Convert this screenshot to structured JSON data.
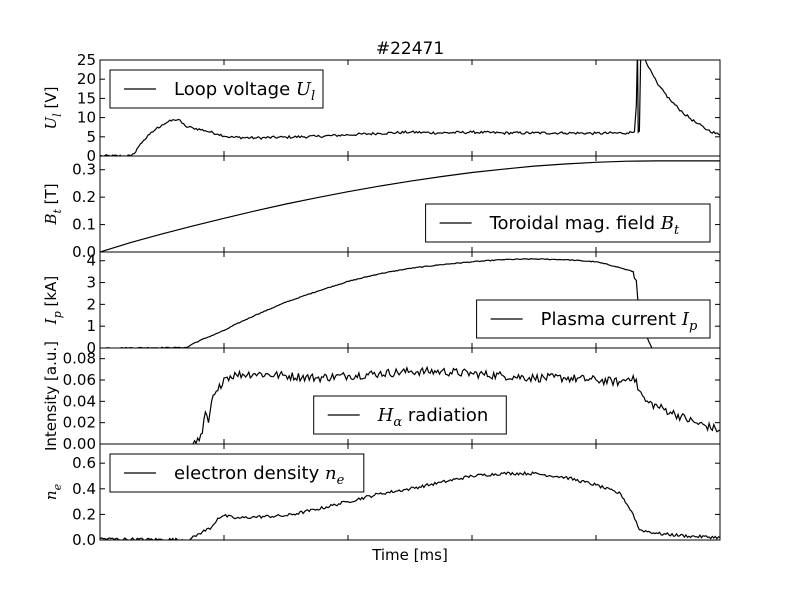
{
  "title": "#22471",
  "xlabel": "Time [ms]",
  "colors": {
    "line": "#000000",
    "frame": "#000000",
    "background": "#ffffff"
  },
  "chart_data": [
    {
      "type": "line",
      "ylabel": {
        "base": "U",
        "sub": "l",
        "unit": " [V]"
      },
      "ylim": [
        0,
        25
      ],
      "yticks": [
        0,
        5,
        10,
        15,
        20,
        25
      ],
      "ytick_labels": [
        "0",
        "5",
        "10",
        "15",
        "20",
        "25"
      ],
      "legend": {
        "text": "Loop voltage ",
        "math": "U",
        "sub": "l",
        "placement": "upper left"
      },
      "series": [
        {
          "values": [
            [
              0,
              0
            ],
            [
              0.05,
              0
            ],
            [
              0.055,
              0.6
            ],
            [
              0.06,
              2
            ],
            [
              0.07,
              4
            ],
            [
              0.08,
              5.6
            ],
            [
              0.09,
              7
            ],
            [
              0.1,
              8.1
            ],
            [
              0.11,
              8.9
            ],
            [
              0.12,
              9.4
            ],
            [
              0.127,
              9.5
            ],
            [
              0.132,
              8.6
            ],
            [
              0.138,
              7.7
            ],
            [
              0.15,
              7.3
            ],
            [
              0.17,
              6.6
            ],
            [
              0.19,
              5.7
            ],
            [
              0.21,
              4.9
            ],
            [
              0.25,
              4.7
            ],
            [
              0.3,
              4.9
            ],
            [
              0.35,
              5.1
            ],
            [
              0.4,
              5.5
            ],
            [
              0.45,
              5.9
            ],
            [
              0.5,
              6.2
            ],
            [
              0.55,
              6.0
            ],
            [
              0.6,
              6.2
            ],
            [
              0.65,
              6.0
            ],
            [
              0.7,
              6.0
            ],
            [
              0.75,
              6.0
            ],
            [
              0.8,
              5.9
            ],
            [
              0.85,
              6.0
            ],
            [
              0.862,
              6.3
            ],
            [
              0.865,
              13
            ],
            [
              0.867,
              28
            ],
            [
              0.868,
              6.2
            ],
            [
              0.87,
              6.5
            ],
            [
              0.872,
              25
            ],
            [
              0.875,
              30
            ],
            [
              0.878,
              26
            ],
            [
              0.885,
              23
            ],
            [
              0.9,
              18.5
            ],
            [
              0.92,
              14.5
            ],
            [
              0.94,
              11.3
            ],
            [
              0.96,
              8.8
            ],
            [
              0.98,
              6.8
            ],
            [
              1.0,
              5.4
            ]
          ],
          "noise": 0.35
        }
      ]
    },
    {
      "type": "line",
      "ylabel": {
        "base": "B",
        "sub": "t",
        "unit": " [T]"
      },
      "ylim": [
        0,
        0.35
      ],
      "yticks": [
        0,
        0.1,
        0.2,
        0.3
      ],
      "ytick_labels": [
        "0.0",
        "0.1",
        "0.2",
        "0.3"
      ],
      "legend": {
        "text": "Toroidal mag. field ",
        "math": "B",
        "sub": "t",
        "placement": "lower right"
      },
      "series": [
        {
          "values": [
            [
              0,
              0
            ],
            [
              0.05,
              0.035
            ],
            [
              0.1,
              0.066
            ],
            [
              0.15,
              0.095
            ],
            [
              0.2,
              0.123
            ],
            [
              0.25,
              0.15
            ],
            [
              0.3,
              0.175
            ],
            [
              0.35,
              0.198
            ],
            [
              0.4,
              0.22
            ],
            [
              0.45,
              0.24
            ],
            [
              0.5,
              0.258
            ],
            [
              0.55,
              0.275
            ],
            [
              0.6,
              0.29
            ],
            [
              0.65,
              0.302
            ],
            [
              0.7,
              0.313
            ],
            [
              0.75,
              0.321
            ],
            [
              0.8,
              0.327
            ],
            [
              0.85,
              0.331
            ],
            [
              0.9,
              0.332
            ],
            [
              0.95,
              0.332
            ],
            [
              1.0,
              0.332
            ]
          ],
          "noise": 0
        }
      ]
    },
    {
      "type": "line",
      "ylabel": {
        "base": "I",
        "sub": "p",
        "unit": " [kA]"
      },
      "ylim": [
        0,
        4.4
      ],
      "yticks": [
        0,
        1,
        2,
        3,
        4
      ],
      "ytick_labels": [
        "0",
        "1",
        "2",
        "3",
        "4"
      ],
      "legend": {
        "text": "Plasma current ",
        "math": "I",
        "sub": "p",
        "placement": "lower right"
      },
      "series": [
        {
          "values": [
            [
              0,
              0
            ],
            [
              0.14,
              0.02
            ],
            [
              0.15,
              0.2
            ],
            [
              0.17,
              0.45
            ],
            [
              0.2,
              0.8
            ],
            [
              0.22,
              1.1
            ],
            [
              0.25,
              1.5
            ],
            [
              0.3,
              2.1
            ],
            [
              0.35,
              2.6
            ],
            [
              0.4,
              3.05
            ],
            [
              0.45,
              3.4
            ],
            [
              0.5,
              3.65
            ],
            [
              0.55,
              3.82
            ],
            [
              0.6,
              3.95
            ],
            [
              0.65,
              4.05
            ],
            [
              0.7,
              4.08
            ],
            [
              0.75,
              4.05
            ],
            [
              0.8,
              3.95
            ],
            [
              0.83,
              3.75
            ],
            [
              0.86,
              3.5
            ],
            [
              0.862,
              3.2
            ],
            [
              0.865,
              3.1
            ],
            [
              0.868,
              2.0
            ],
            [
              0.875,
              1.0
            ],
            [
              0.885,
              0.3
            ],
            [
              0.89,
              0
            ]
          ],
          "noise": 0.02
        }
      ]
    },
    {
      "type": "line",
      "ylabel": {
        "base": "Intensity [a.u.]",
        "sub": "",
        "unit": ""
      },
      "ylim": [
        0,
        0.09
      ],
      "yticks": [
        0,
        0.02,
        0.04,
        0.06,
        0.08
      ],
      "ytick_labels": [
        "0.00",
        "0.02",
        "0.04",
        "0.06",
        "0.08"
      ],
      "legend": {
        "text": "",
        "math": "H",
        "sub": "α",
        "suffix": "  radiation",
        "placement": "lower center"
      },
      "series": [
        {
          "values": [
            [
              0.15,
              0
            ],
            [
              0.16,
              0.003
            ],
            [
              0.165,
              0.01
            ],
            [
              0.17,
              0.03
            ],
            [
              0.175,
              0.02
            ],
            [
              0.18,
              0.04
            ],
            [
              0.19,
              0.05
            ],
            [
              0.2,
              0.062
            ],
            [
              0.22,
              0.065
            ],
            [
              0.25,
              0.066
            ],
            [
              0.3,
              0.064
            ],
            [
              0.35,
              0.062
            ],
            [
              0.4,
              0.064
            ],
            [
              0.45,
              0.066
            ],
            [
              0.5,
              0.068
            ],
            [
              0.55,
              0.068
            ],
            [
              0.6,
              0.066
            ],
            [
              0.65,
              0.064
            ],
            [
              0.7,
              0.062
            ],
            [
              0.75,
              0.062
            ],
            [
              0.8,
              0.06
            ],
            [
              0.84,
              0.058
            ],
            [
              0.86,
              0.064
            ],
            [
              0.87,
              0.05
            ],
            [
              0.88,
              0.04
            ],
            [
              0.92,
              0.03
            ],
            [
              0.96,
              0.02
            ],
            [
              1.0,
              0.013
            ]
          ],
          "noise": 0.004
        }
      ]
    },
    {
      "type": "line",
      "ylabel": {
        "base": "n",
        "sub": "e",
        "unit": ""
      },
      "ylim": [
        0,
        0.75
      ],
      "yticks": [
        0,
        0.2,
        0.4,
        0.6
      ],
      "ytick_labels": [
        "0.0",
        "0.2",
        "0.4",
        "0.6"
      ],
      "legend": {
        "text": "electron density ",
        "math": "n",
        "sub": "e",
        "placement": "upper left"
      },
      "series": [
        {
          "values": [
            [
              0,
              0.01
            ],
            [
              0.05,
              0.005
            ],
            [
              0.1,
              0.003
            ],
            [
              0.145,
              0.003
            ],
            [
              0.16,
              0.05
            ],
            [
              0.18,
              0.1
            ],
            [
              0.19,
              0.17
            ],
            [
              0.2,
              0.19
            ],
            [
              0.22,
              0.17
            ],
            [
              0.25,
              0.18
            ],
            [
              0.3,
              0.19
            ],
            [
              0.35,
              0.24
            ],
            [
              0.4,
              0.3
            ],
            [
              0.45,
              0.36
            ],
            [
              0.5,
              0.4
            ],
            [
              0.55,
              0.45
            ],
            [
              0.6,
              0.5
            ],
            [
              0.65,
              0.52
            ],
            [
              0.7,
              0.52
            ],
            [
              0.75,
              0.49
            ],
            [
              0.8,
              0.43
            ],
            [
              0.84,
              0.36
            ],
            [
              0.86,
              0.2
            ],
            [
              0.87,
              0.08
            ],
            [
              0.9,
              0.05
            ],
            [
              0.95,
              0.03
            ],
            [
              1.0,
              0.02
            ]
          ],
          "noise": 0.012
        }
      ]
    }
  ]
}
